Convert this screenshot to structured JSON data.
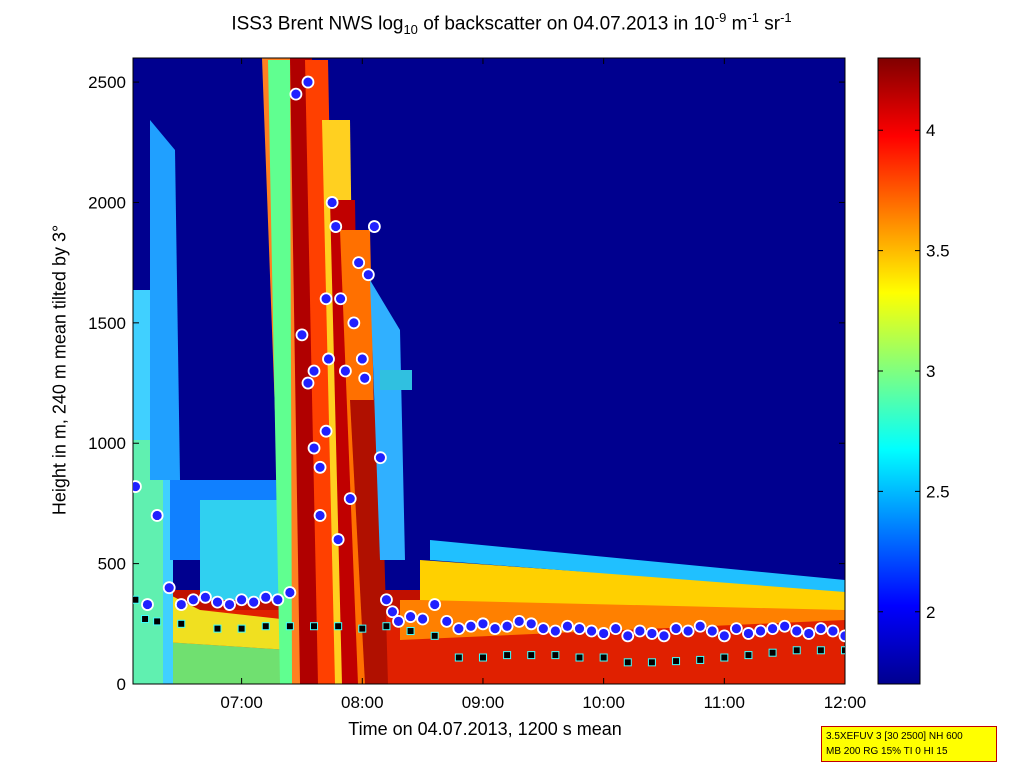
{
  "chart_data": {
    "type": "heatmap",
    "title_parts": {
      "prefix": "ISS3 Brent NWS log",
      "sub": "10",
      "mid": " of backscatter on 04.07.2013 in 10",
      "sup1": "-9",
      "mid2": " m",
      "sup2": "-1",
      "mid3": " sr",
      "sup3": "-1"
    },
    "xlabel": "Time on 04.07.2013, 1200 s mean",
    "ylabel": "Height in m, 240 m mean tilted by 3°",
    "x_ticks": [
      "07:00",
      "08:00",
      "09:00",
      "10:00",
      "11:00",
      "12:00"
    ],
    "x_tick_hours": [
      7,
      8,
      9,
      10,
      11,
      12
    ],
    "xlim_hours": [
      6.1,
      12.0
    ],
    "y_ticks": [
      0,
      500,
      1000,
      1500,
      2000,
      2500
    ],
    "ylim": [
      0,
      2600
    ],
    "colorbar": {
      "range": [
        1.7,
        4.3
      ],
      "ticks": [
        2,
        2.5,
        3,
        3.5,
        4
      ],
      "tick_labels": [
        "2",
        "2.5",
        "3",
        "3.5",
        "4"
      ],
      "colormap": "jet"
    },
    "series": [
      {
        "name": "",
        "marker": "circle-blue-red-outline",
        "x_hours": [
          6.12,
          6.22,
          6.3,
          6.4,
          6.5,
          6.6,
          6.7,
          6.8,
          6.9,
          7.0,
          7.1,
          7.2,
          7.3,
          7.4,
          7.45,
          7.5,
          7.55,
          7.6,
          7.65,
          7.7,
          7.75,
          7.8,
          7.55,
          7.6,
          7.65,
          7.7,
          7.72,
          7.78,
          7.82,
          7.86,
          7.9,
          7.93,
          7.97,
          8.0,
          8.02,
          8.05,
          8.1,
          8.15,
          8.2,
          8.25,
          8.3,
          8.4,
          8.5,
          8.6,
          8.7,
          8.8,
          8.9,
          9.0,
          9.1,
          9.2,
          9.3,
          9.4,
          9.5,
          9.6,
          9.7,
          9.8,
          9.9,
          10.0,
          10.1,
          10.2,
          10.3,
          10.4,
          10.5,
          10.6,
          10.7,
          10.8,
          10.9,
          11.0,
          11.1,
          11.2,
          11.3,
          11.4,
          11.5,
          11.6,
          11.7,
          11.8,
          11.9,
          12.0
        ],
        "heights_m": [
          820,
          330,
          700,
          400,
          330,
          350,
          360,
          340,
          330,
          350,
          340,
          360,
          350,
          380,
          2450,
          1450,
          1250,
          980,
          900,
          1050,
          2000,
          600,
          2500,
          1300,
          700,
          1600,
          1350,
          1900,
          1600,
          1300,
          770,
          1500,
          1750,
          1350,
          1270,
          1700,
          1900,
          940,
          350,
          300,
          260,
          280,
          270,
          330,
          260,
          230,
          240,
          250,
          230,
          240,
          260,
          250,
          230,
          220,
          240,
          230,
          220,
          210,
          230,
          200,
          220,
          210,
          200,
          230,
          220,
          240,
          220,
          200,
          230,
          210,
          220,
          230,
          240,
          220,
          210,
          230,
          220,
          200
        ]
      },
      {
        "name": "",
        "marker": "square-black",
        "x_hours": [
          6.12,
          6.2,
          6.3,
          6.5,
          6.8,
          7.0,
          7.2,
          7.4,
          7.6,
          7.8,
          8.0,
          8.2,
          8.4,
          8.6,
          8.8,
          9.0,
          9.2,
          9.4,
          9.6,
          9.8,
          10.0,
          10.2,
          10.4,
          10.6,
          10.8,
          11.0,
          11.2,
          11.4,
          11.6,
          11.8,
          12.0
        ],
        "heights_m": [
          350,
          270,
          260,
          250,
          230,
          230,
          240,
          240,
          240,
          240,
          230,
          240,
          220,
          200,
          110,
          110,
          120,
          120,
          120,
          110,
          110,
          90,
          90,
          95,
          100,
          110,
          120,
          130,
          140,
          140,
          140
        ]
      }
    ]
  },
  "info_box": {
    "line1": "3.5XEFUV 3 [30 2500] NH 600",
    "line2": "MB 200 RG 15% TI 0 HI 15"
  }
}
